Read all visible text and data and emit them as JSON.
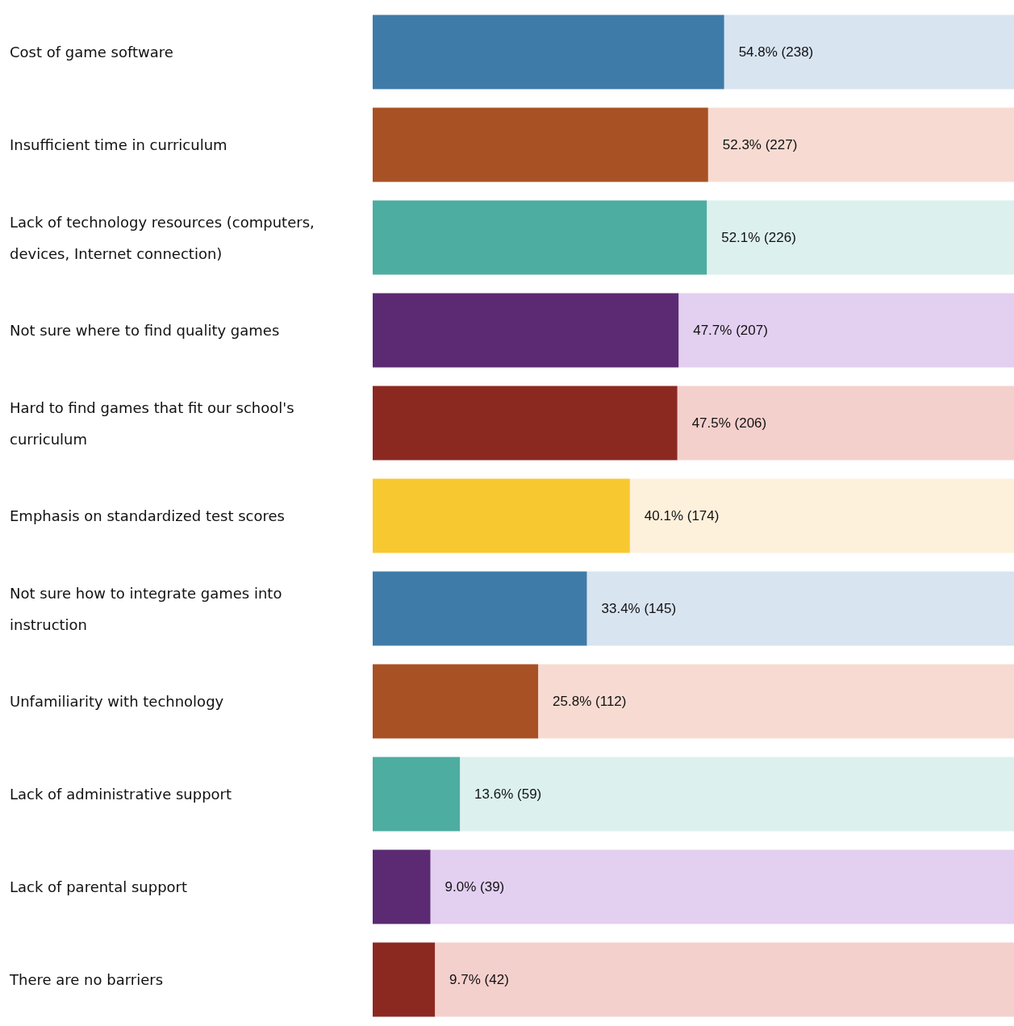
{
  "chart_data": {
    "type": "bar",
    "orientation": "horizontal",
    "stacked": true,
    "tick_labels": "y",
    "xlim": [
      0,
      100
    ],
    "categories": [
      "Cost of game software",
      "Insufficient time in curriculum",
      "Lack of technology resources (computers, devices, Internet connection)",
      "Not sure where to find quality games",
      "Hard to find games that fit our school's curriculum",
      "Emphasis on standardized test scores",
      "Not sure how to integrate games into instruction",
      "Unfamiliarity with technology",
      "Lack of administrative support",
      "Lack of parental support",
      "There are no barriers"
    ],
    "series": [
      {
        "values": [
          54.8,
          52.3,
          52.1,
          47.7,
          47.5,
          40.1,
          33.4,
          25.8,
          13.6,
          9.0,
          9.7
        ],
        "colors": [
          "#3f7ba8",
          "#a85124",
          "#4dada0",
          "#5b2a73",
          "#8b2921",
          "#f7c830",
          "#3f7ba8",
          "#a85124",
          "#4dada0",
          "#5b2a73",
          "#8b2921"
        ],
        "value_labels": [
          "54.8% (238)",
          "52.3% (227)",
          "52.1% (226)",
          "47.7% (207)",
          "47.5% (206)",
          "40.1% (174)",
          "33.4% (145)",
          "25.8% (112)",
          "13.6% (59)",
          "9.0% (39)",
          "9.7% (42)"
        ]
      },
      {
        "values": [
          45.2,
          47.7,
          47.9,
          52.3,
          52.5,
          59.9,
          66.6,
          74.2,
          86.4,
          91.0,
          90.3
        ],
        "colors": [
          "#d8e4f0",
          "#f7dbd2",
          "#dcf1ee",
          "#e3cff0",
          "#f4d0cd",
          "#fdf1dc",
          "#d8e4f0",
          "#f7dbd2",
          "#dcf1ee",
          "#e3cff0",
          "#f4d0cd"
        ]
      }
    ]
  }
}
